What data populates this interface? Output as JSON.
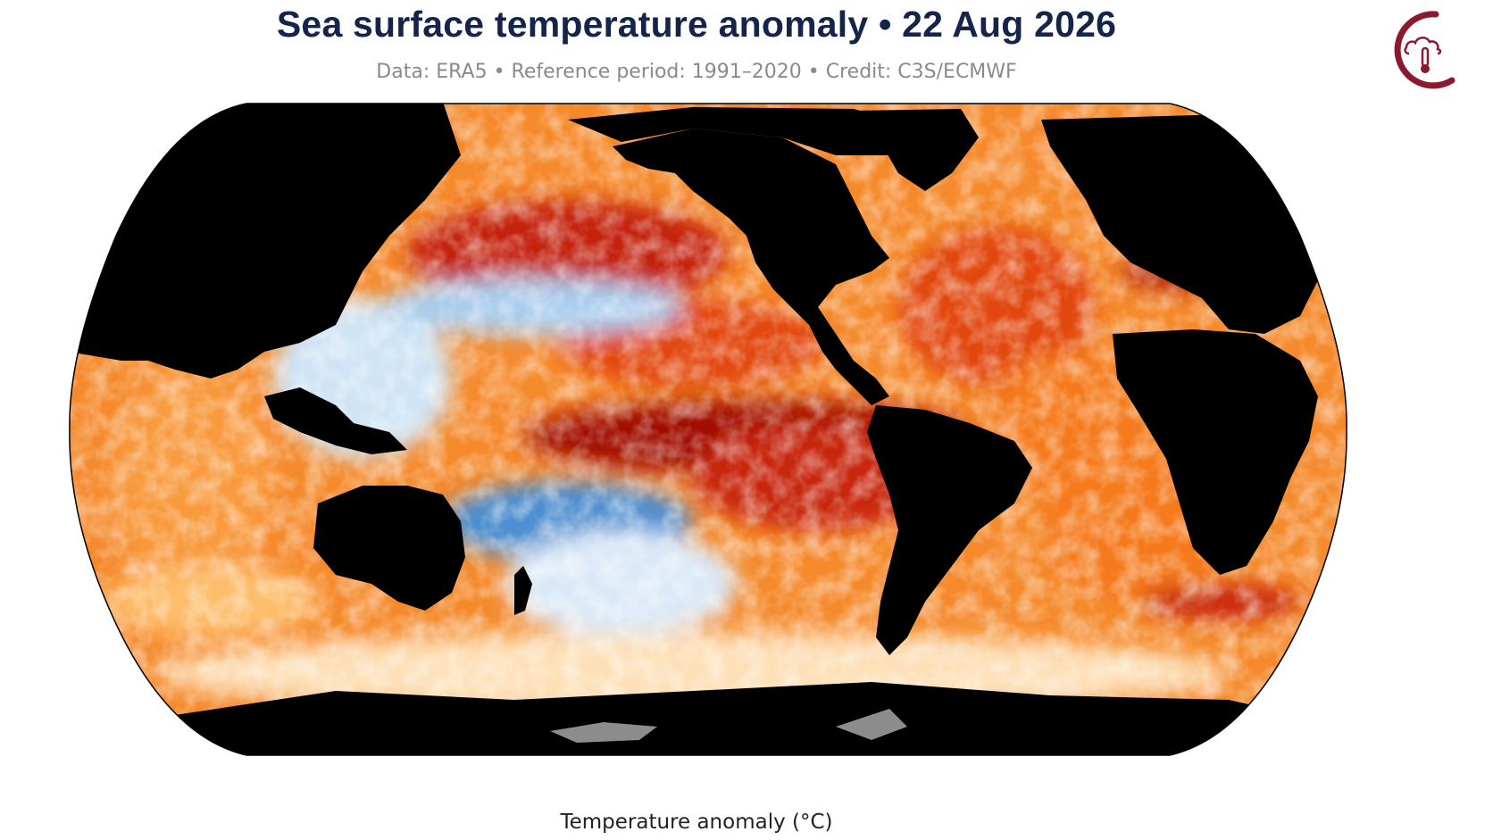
{
  "header": {
    "title": "Sea surface temperature anomaly • 22 Aug 2026",
    "subtitle": "Data: ERA5 • Reference period: 1991–2020 • Credit: C3S/ECMWF"
  },
  "logo": {
    "icon": "cloud-thermometer-icon",
    "color": "#8b1a2f"
  },
  "map": {
    "projection": "robinson",
    "land_color": "#000000",
    "ice_color": "#8c8c8c",
    "ocean_palette": {
      "very_cold": "#2166ac",
      "cold": "#6aa9dc",
      "cool": "#cfe4f5",
      "neutral": "#ffffff",
      "warm": "#fdbd6a",
      "warmer": "#f57a1e",
      "hot": "#e2460c",
      "very_hot": "#a01005"
    }
  },
  "legend": {
    "label": "Temperature anomaly (°C)"
  }
}
